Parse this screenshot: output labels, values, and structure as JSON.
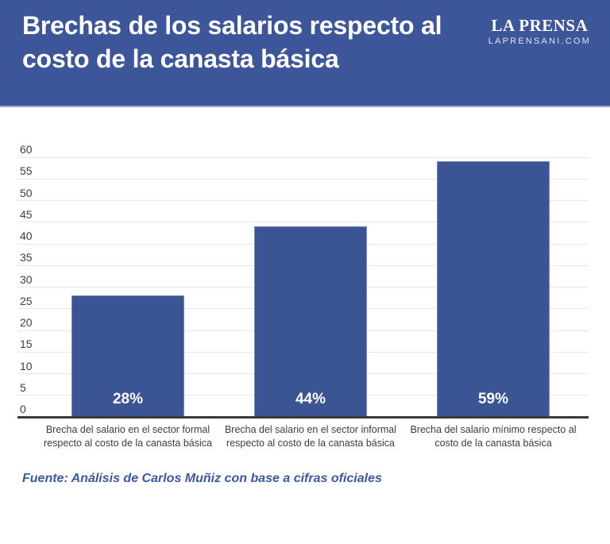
{
  "header": {
    "title": "Brechas de los salarios respecto al costo de la canasta básica",
    "title_lines": [
      "Brechas de los salarios respecto al",
      "costo de la canasta básica"
    ],
    "logo": {
      "name": "LA PRENSA",
      "site": "LAPRENSANI.COM"
    },
    "bg_color": "#3d569a"
  },
  "chart_data": {
    "type": "bar",
    "title": "Brechas de los salarios respecto al costo de la canasta básica",
    "categories": [
      "Brecha del salario en el sector formal respecto al costo de la canasta básica",
      "Brecha del salario en el sector informal respecto al costo de la canasta básica",
      "Brecha del salario mínimo respecto al costo de la canasta básica"
    ],
    "values": [
      28,
      44,
      59
    ],
    "value_labels": [
      "28%",
      "44%",
      "59%"
    ],
    "xlabel": "",
    "ylabel": "",
    "ylim": [
      0,
      60
    ],
    "yticks": [
      0,
      5,
      10,
      15,
      20,
      25,
      30,
      35,
      40,
      45,
      50,
      55,
      60
    ],
    "grid": true,
    "legend": false,
    "bar_color": "#3b5594",
    "value_label_color": "#ffffff",
    "gridline_color": "#e7e7e7",
    "baseline_color": "#3a3a3a"
  },
  "source": {
    "text": "Fuente: Análisis de Carlos Muñiz con base a cifras oficiales"
  }
}
